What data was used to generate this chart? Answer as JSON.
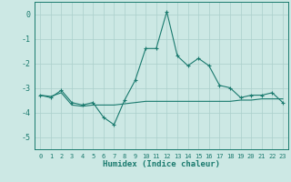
{
  "xlabel": "Humidex (Indice chaleur)",
  "ylabel": "",
  "x": [
    0,
    1,
    2,
    3,
    4,
    5,
    6,
    7,
    8,
    9,
    10,
    11,
    12,
    13,
    14,
    15,
    16,
    17,
    18,
    19,
    20,
    21,
    22,
    23
  ],
  "y_line1": [
    -3.3,
    -3.4,
    -3.1,
    -3.6,
    -3.7,
    -3.6,
    -4.2,
    -4.5,
    -3.5,
    -2.7,
    -1.4,
    -1.4,
    0.1,
    -1.7,
    -2.1,
    -1.8,
    -2.1,
    -2.9,
    -3.0,
    -3.4,
    -3.3,
    -3.3,
    -3.2,
    -3.6
  ],
  "y_line2": [
    -3.3,
    -3.35,
    -3.2,
    -3.7,
    -3.75,
    -3.7,
    -3.7,
    -3.7,
    -3.65,
    -3.6,
    -3.55,
    -3.55,
    -3.55,
    -3.55,
    -3.55,
    -3.55,
    -3.55,
    -3.55,
    -3.55,
    -3.5,
    -3.5,
    -3.45,
    -3.45,
    -3.45
  ],
  "ylim": [
    -5.5,
    0.5
  ],
  "xlim": [
    -0.5,
    23.5
  ],
  "yticks": [
    0,
    -1,
    -2,
    -3,
    -4,
    -5
  ],
  "xticks": [
    0,
    1,
    2,
    3,
    4,
    5,
    6,
    7,
    8,
    9,
    10,
    11,
    12,
    13,
    14,
    15,
    16,
    17,
    18,
    19,
    20,
    21,
    22,
    23
  ],
  "line_color": "#1a7a6e",
  "bg_color": "#cce8e4",
  "grid_color": "#aacfcb"
}
